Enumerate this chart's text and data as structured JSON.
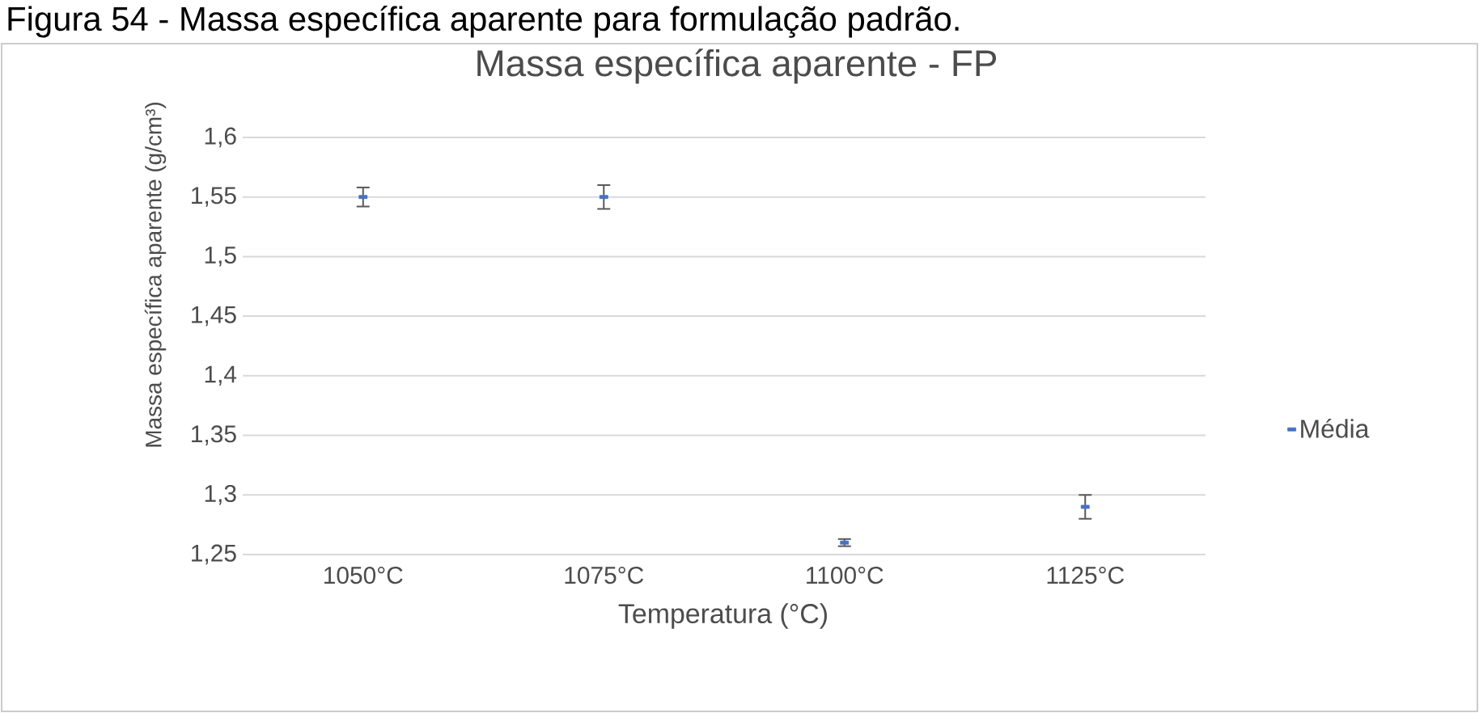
{
  "chart_data": {
    "type": "scatter",
    "title": "Massa específica aparente - FP",
    "xlabel": "Temperatura (°C)",
    "ylabel": "Massa específica aparente (g/cm³)",
    "annotations": [
      "Figura 54 - Massa específica aparente para formulação padrão."
    ],
    "categories": [
      "1050°C",
      "1075°C",
      "1100°C",
      "1125°C"
    ],
    "series": [
      {
        "name": "Média",
        "color": "#4472c4",
        "values": [
          1.55,
          1.55,
          1.26,
          1.29
        ],
        "errors": [
          0.008,
          0.01,
          0.003,
          0.01
        ]
      }
    ],
    "ylim": [
      1.25,
      1.6
    ],
    "yticks": [
      {
        "value": 1.25,
        "label": "1,25"
      },
      {
        "value": 1.3,
        "label": "1,3"
      },
      {
        "value": 1.35,
        "label": "1,35"
      },
      {
        "value": 1.4,
        "label": "1,4"
      },
      {
        "value": 1.45,
        "label": "1,45"
      },
      {
        "value": 1.5,
        "label": "1,5"
      },
      {
        "value": 1.55,
        "label": "1,55"
      },
      {
        "value": 1.6,
        "label": "1,6"
      }
    ],
    "grid": "y",
    "legend": "right",
    "marker": "square"
  }
}
